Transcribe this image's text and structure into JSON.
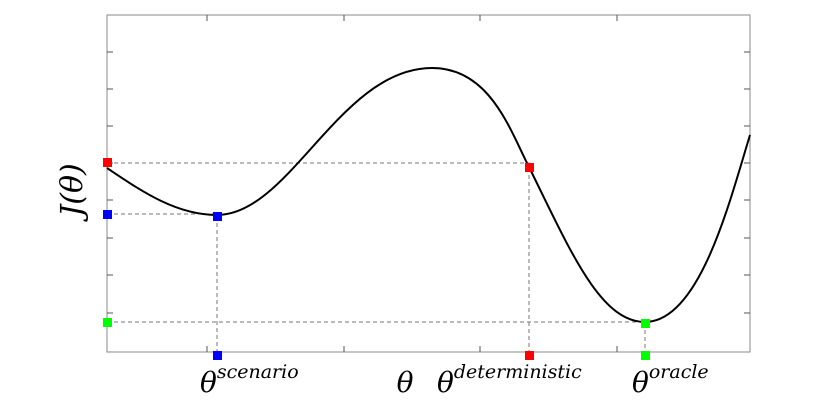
{
  "axes": {
    "y_label": "J(θ)",
    "x_label": "θ"
  },
  "points": [
    {
      "symbol": "θ",
      "superscript": "scenario"
    },
    {
      "symbol": "θ",
      "superscript": "deterministic"
    },
    {
      "symbol": "θ",
      "superscript": "oracle"
    }
  ]
}
